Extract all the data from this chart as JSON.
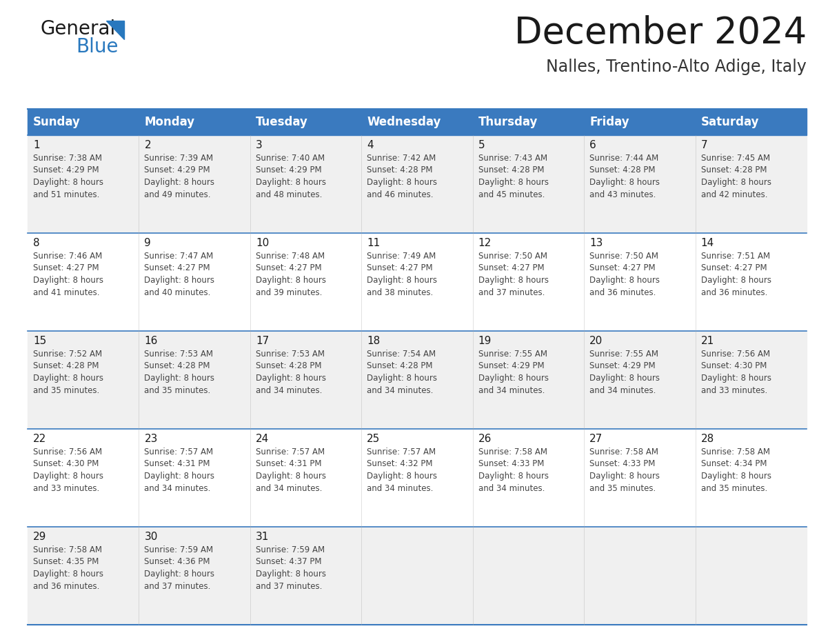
{
  "title": "December 2024",
  "subtitle": "Nalles, Trentino-Alto Adige, Italy",
  "header_color": "#3a7abf",
  "header_text_color": "#ffffff",
  "cell_bg_even": "#f0f0f0",
  "cell_bg_odd": "#ffffff",
  "border_color": "#3a7abf",
  "title_color": "#1a1a1a",
  "subtitle_color": "#333333",
  "day_num_color": "#1a1a1a",
  "cell_text_color": "#444444",
  "logo_general_color": "#1a1a1a",
  "logo_blue_color": "#2878be",
  "day_names": [
    "Sunday",
    "Monday",
    "Tuesday",
    "Wednesday",
    "Thursday",
    "Friday",
    "Saturday"
  ],
  "fig_width": 11.88,
  "fig_height": 9.18,
  "dpi": 100,
  "weeks": [
    [
      {
        "day": 1,
        "sunrise": "7:38 AM",
        "sunset": "4:29 PM",
        "daylight_h": "8 hours",
        "daylight_m": "and 51 minutes."
      },
      {
        "day": 2,
        "sunrise": "7:39 AM",
        "sunset": "4:29 PM",
        "daylight_h": "8 hours",
        "daylight_m": "and 49 minutes."
      },
      {
        "day": 3,
        "sunrise": "7:40 AM",
        "sunset": "4:29 PM",
        "daylight_h": "8 hours",
        "daylight_m": "and 48 minutes."
      },
      {
        "day": 4,
        "sunrise": "7:42 AM",
        "sunset": "4:28 PM",
        "daylight_h": "8 hours",
        "daylight_m": "and 46 minutes."
      },
      {
        "day": 5,
        "sunrise": "7:43 AM",
        "sunset": "4:28 PM",
        "daylight_h": "8 hours",
        "daylight_m": "and 45 minutes."
      },
      {
        "day": 6,
        "sunrise": "7:44 AM",
        "sunset": "4:28 PM",
        "daylight_h": "8 hours",
        "daylight_m": "and 43 minutes."
      },
      {
        "day": 7,
        "sunrise": "7:45 AM",
        "sunset": "4:28 PM",
        "daylight_h": "8 hours",
        "daylight_m": "and 42 minutes."
      }
    ],
    [
      {
        "day": 8,
        "sunrise": "7:46 AM",
        "sunset": "4:27 PM",
        "daylight_h": "8 hours",
        "daylight_m": "and 41 minutes."
      },
      {
        "day": 9,
        "sunrise": "7:47 AM",
        "sunset": "4:27 PM",
        "daylight_h": "8 hours",
        "daylight_m": "and 40 minutes."
      },
      {
        "day": 10,
        "sunrise": "7:48 AM",
        "sunset": "4:27 PM",
        "daylight_h": "8 hours",
        "daylight_m": "and 39 minutes."
      },
      {
        "day": 11,
        "sunrise": "7:49 AM",
        "sunset": "4:27 PM",
        "daylight_h": "8 hours",
        "daylight_m": "and 38 minutes."
      },
      {
        "day": 12,
        "sunrise": "7:50 AM",
        "sunset": "4:27 PM",
        "daylight_h": "8 hours",
        "daylight_m": "and 37 minutes."
      },
      {
        "day": 13,
        "sunrise": "7:50 AM",
        "sunset": "4:27 PM",
        "daylight_h": "8 hours",
        "daylight_m": "and 36 minutes."
      },
      {
        "day": 14,
        "sunrise": "7:51 AM",
        "sunset": "4:27 PM",
        "daylight_h": "8 hours",
        "daylight_m": "and 36 minutes."
      }
    ],
    [
      {
        "day": 15,
        "sunrise": "7:52 AM",
        "sunset": "4:28 PM",
        "daylight_h": "8 hours",
        "daylight_m": "and 35 minutes."
      },
      {
        "day": 16,
        "sunrise": "7:53 AM",
        "sunset": "4:28 PM",
        "daylight_h": "8 hours",
        "daylight_m": "and 35 minutes."
      },
      {
        "day": 17,
        "sunrise": "7:53 AM",
        "sunset": "4:28 PM",
        "daylight_h": "8 hours",
        "daylight_m": "and 34 minutes."
      },
      {
        "day": 18,
        "sunrise": "7:54 AM",
        "sunset": "4:28 PM",
        "daylight_h": "8 hours",
        "daylight_m": "and 34 minutes."
      },
      {
        "day": 19,
        "sunrise": "7:55 AM",
        "sunset": "4:29 PM",
        "daylight_h": "8 hours",
        "daylight_m": "and 34 minutes."
      },
      {
        "day": 20,
        "sunrise": "7:55 AM",
        "sunset": "4:29 PM",
        "daylight_h": "8 hours",
        "daylight_m": "and 34 minutes."
      },
      {
        "day": 21,
        "sunrise": "7:56 AM",
        "sunset": "4:30 PM",
        "daylight_h": "8 hours",
        "daylight_m": "and 33 minutes."
      }
    ],
    [
      {
        "day": 22,
        "sunrise": "7:56 AM",
        "sunset": "4:30 PM",
        "daylight_h": "8 hours",
        "daylight_m": "and 33 minutes."
      },
      {
        "day": 23,
        "sunrise": "7:57 AM",
        "sunset": "4:31 PM",
        "daylight_h": "8 hours",
        "daylight_m": "and 34 minutes."
      },
      {
        "day": 24,
        "sunrise": "7:57 AM",
        "sunset": "4:31 PM",
        "daylight_h": "8 hours",
        "daylight_m": "and 34 minutes."
      },
      {
        "day": 25,
        "sunrise": "7:57 AM",
        "sunset": "4:32 PM",
        "daylight_h": "8 hours",
        "daylight_m": "and 34 minutes."
      },
      {
        "day": 26,
        "sunrise": "7:58 AM",
        "sunset": "4:33 PM",
        "daylight_h": "8 hours",
        "daylight_m": "and 34 minutes."
      },
      {
        "day": 27,
        "sunrise": "7:58 AM",
        "sunset": "4:33 PM",
        "daylight_h": "8 hours",
        "daylight_m": "and 35 minutes."
      },
      {
        "day": 28,
        "sunrise": "7:58 AM",
        "sunset": "4:34 PM",
        "daylight_h": "8 hours",
        "daylight_m": "and 35 minutes."
      }
    ],
    [
      {
        "day": 29,
        "sunrise": "7:58 AM",
        "sunset": "4:35 PM",
        "daylight_h": "8 hours",
        "daylight_m": "and 36 minutes."
      },
      {
        "day": 30,
        "sunrise": "7:59 AM",
        "sunset": "4:36 PM",
        "daylight_h": "8 hours",
        "daylight_m": "and 37 minutes."
      },
      {
        "day": 31,
        "sunrise": "7:59 AM",
        "sunset": "4:37 PM",
        "daylight_h": "8 hours",
        "daylight_m": "and 37 minutes."
      },
      null,
      null,
      null,
      null
    ]
  ]
}
